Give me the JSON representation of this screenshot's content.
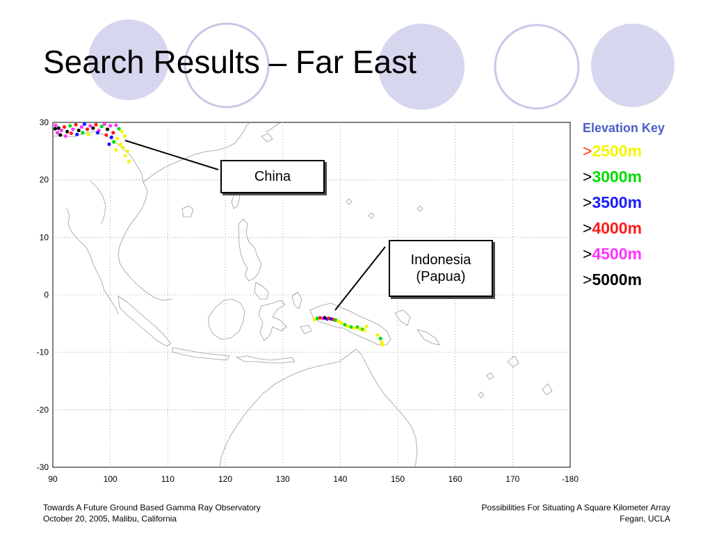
{
  "slide": {
    "title": "Search Results – Far East"
  },
  "map": {
    "x_axis": {
      "range": [
        90,
        180
      ],
      "tick_labels": [
        "90",
        "100",
        "110",
        "120",
        "130",
        "140",
        "150",
        "160",
        "170",
        "-180"
      ]
    },
    "y_axis": {
      "range": [
        -30,
        30
      ],
      "tick_labels": [
        "30",
        "20",
        "10",
        "0",
        "-10",
        "-20",
        "-30"
      ]
    },
    "grid": "dotted",
    "callouts": [
      {
        "name": "china",
        "lines": [
          "China"
        ]
      },
      {
        "name": "indonesia",
        "lines": [
          "Indonesia",
          "(Papua)"
        ]
      }
    ]
  },
  "elevation_key": {
    "title": "Elevation Key",
    "title_color": "#4b5dcc",
    "items": [
      {
        "label": "2500m",
        "prefix": ">",
        "color": "#f5f500",
        "prefix_color": "#ff3300"
      },
      {
        "label": "3000m",
        "prefix": ">",
        "color": "#00dd00",
        "prefix_color": "#000000"
      },
      {
        "label": "3500m",
        "prefix": ">",
        "color": "#1a1aff",
        "prefix_color": "#000000"
      },
      {
        "label": "4000m",
        "prefix": ">",
        "color": "#ff1a1a",
        "prefix_color": "#000000"
      },
      {
        "label": "4500m",
        "prefix": ">",
        "color": "#ff33ff",
        "prefix_color": "#000000"
      },
      {
        "label": "5000m",
        "prefix": ">",
        "color": "#000000",
        "prefix_color": "#000000"
      }
    ]
  },
  "footer": {
    "left_line1": "Towards A Future Ground Based Gamma Ray Observatory",
    "left_line2": "October 20, 2005, Malibu, California",
    "right_line1": "Possibilities For Situating A Square Kilometer Array",
    "right_line2": "Fegan, UCLA"
  },
  "colors": {
    "circle_fill": "#d6d6ee",
    "circle_stroke": "#c7c7e8",
    "coast": "#9a9a9a"
  }
}
